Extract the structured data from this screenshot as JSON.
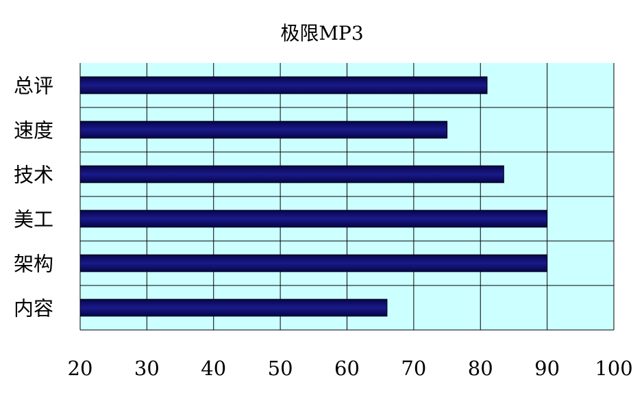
{
  "chart_data": {
    "type": "bar",
    "orientation": "horizontal",
    "title": "极限MP3",
    "categories": [
      "总评",
      "速度",
      "技术",
      "美工",
      "架构",
      "内容"
    ],
    "series": [
      {
        "values": [
          81,
          75,
          83.5,
          90,
          90,
          66
        ],
        "color": "#0a0a6e"
      }
    ],
    "xlim": [
      20,
      100
    ],
    "xticks": [
      20,
      30,
      40,
      50,
      60,
      70,
      80,
      90,
      100
    ],
    "grid": true,
    "legend": "none",
    "plot_background": "#ccffff"
  }
}
